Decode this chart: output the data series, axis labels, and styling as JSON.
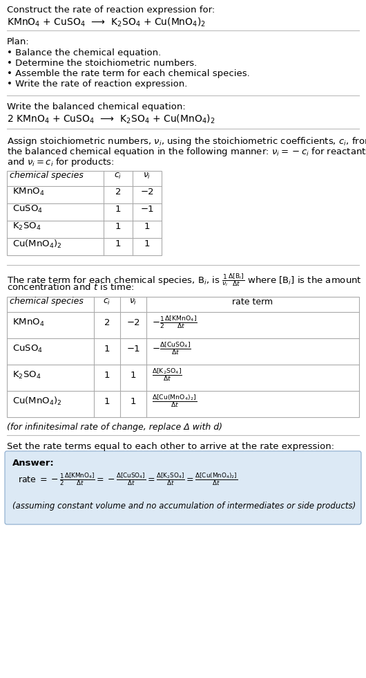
{
  "bg_color": "#ffffff",
  "title_text": "Construct the rate of reaction expression for:",
  "reaction_unbalanced": "KMnO$_4$ + CuSO$_4$  ⟶  K$_2$SO$_4$ + Cu(MnO$_4$)$_2$",
  "plan_header": "Plan:",
  "plan_items": [
    "• Balance the chemical equation.",
    "• Determine the stoichiometric numbers.",
    "• Assemble the rate term for each chemical species.",
    "• Write the rate of reaction expression."
  ],
  "balanced_header": "Write the balanced chemical equation:",
  "reaction_balanced": "2 KMnO$_4$ + CuSO$_4$  ⟶  K$_2$SO$_4$ + Cu(MnO$_4$)$_2$",
  "stoich_intro_lines": [
    "Assign stoichiometric numbers, $\\nu_i$, using the stoichiometric coefficients, $c_i$, from",
    "the balanced chemical equation in the following manner: $\\nu_i = -c_i$ for reactants",
    "and $\\nu_i = c_i$ for products:"
  ],
  "table1_headers": [
    "chemical species",
    "$c_i$",
    "$\\nu_i$"
  ],
  "table1_rows": [
    [
      "KMnO$_4$",
      "2",
      "−2"
    ],
    [
      "CuSO$_4$",
      "1",
      "−1"
    ],
    [
      "K$_2$SO$_4$",
      "1",
      "1"
    ],
    [
      "Cu(MnO$_4$)$_2$",
      "1",
      "1"
    ]
  ],
  "rate_intro_lines": [
    "The rate term for each chemical species, B$_i$, is $\\frac{1}{\\nu_i}\\frac{\\Delta[\\mathrm{B}_i]}{\\Delta t}$ where [B$_i$] is the amount",
    "concentration and $t$ is time:"
  ],
  "table2_headers": [
    "chemical species",
    "$c_i$",
    "$\\nu_i$",
    "rate term"
  ],
  "table2_rows": [
    [
      "KMnO$_4$",
      "2",
      "−2",
      "$-\\frac{1}{2}\\frac{\\Delta[\\mathrm{KMnO_4}]}{\\Delta t}$"
    ],
    [
      "CuSO$_4$",
      "1",
      "−1",
      "$-\\frac{\\Delta[\\mathrm{CuSO_4}]}{\\Delta t}$"
    ],
    [
      "K$_2$SO$_4$",
      "1",
      "1",
      "$\\frac{\\Delta[\\mathrm{K_2SO_4}]}{\\Delta t}$"
    ],
    [
      "Cu(MnO$_4$)$_2$",
      "1",
      "1",
      "$\\frac{\\Delta[\\mathrm{Cu(MnO_4)_2}]}{\\Delta t}$"
    ]
  ],
  "delta_note": "(for infinitesimal rate of change, replace Δ with d)",
  "answer_intro": "Set the rate terms equal to each other to arrive at the rate expression:",
  "answer_bg": "#dce9f5",
  "answer_label": "Answer:",
  "answer_eq": "rate $= -\\frac{1}{2}\\frac{\\Delta[\\mathrm{KMnO_4}]}{\\Delta t} = -\\frac{\\Delta[\\mathrm{CuSO_4}]}{\\Delta t} = \\frac{\\Delta[\\mathrm{K_2SO_4}]}{\\Delta t} = \\frac{\\Delta[\\mathrm{Cu(MnO_4)_2}]}{\\Delta t}$",
  "answer_note": "(assuming constant volume and no accumulation of intermediates or side products)",
  "table_border_color": "#aaaaaa",
  "text_color": "#000000",
  "font_size": 9.5,
  "fig_width": 5.3,
  "fig_height": 9.8
}
